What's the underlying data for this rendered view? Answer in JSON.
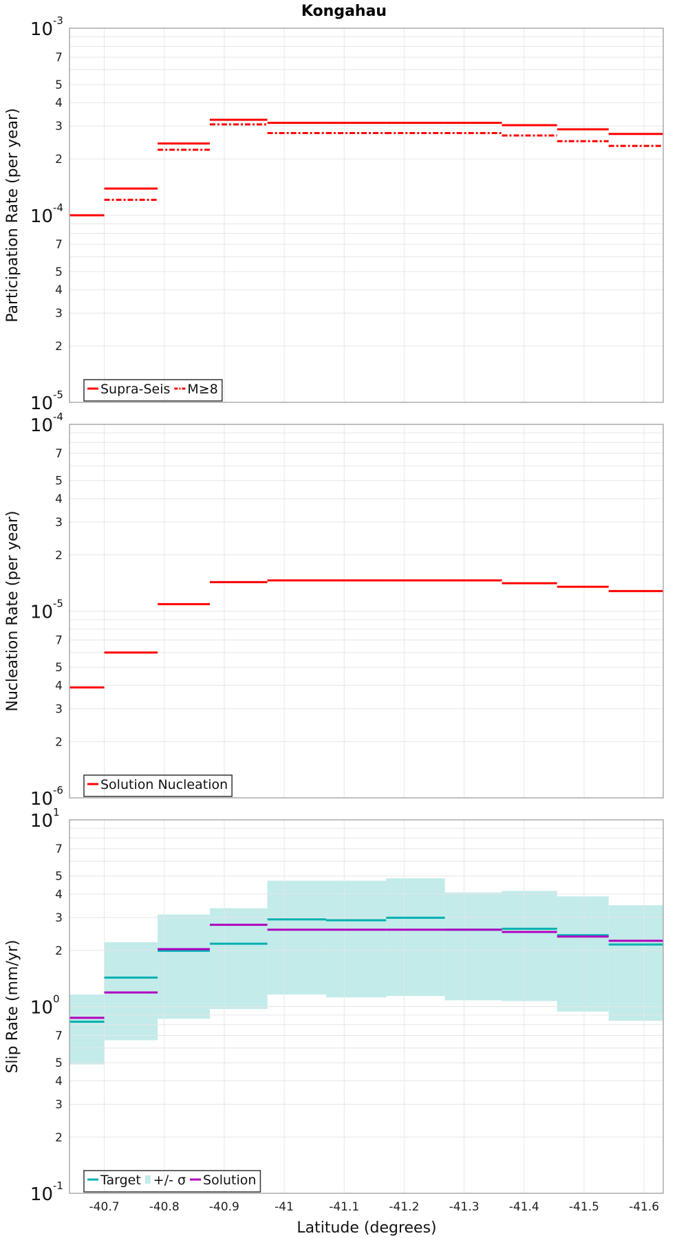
{
  "chart_data": {
    "type": "line",
    "title": "Kongahau",
    "xlabel": "Latitude (degrees)",
    "xlim": [
      -40.642,
      -41.632
    ],
    "xticks": [
      "-40.7",
      "-40.8",
      "-40.9",
      "-41",
      "-41.1",
      "-41.2",
      "-41.3",
      "-41.4",
      "-41.5",
      "-41.6"
    ],
    "xtick_values": [
      -40.7,
      -40.8,
      -40.9,
      -41.0,
      -41.1,
      -41.2,
      -41.3,
      -41.4,
      -41.5,
      -41.6
    ],
    "bin_edges": [
      -40.642,
      -40.7,
      -40.789,
      -40.876,
      -40.972,
      -41.07,
      -41.17,
      -41.268,
      -41.363,
      -41.455,
      -41.541,
      -41.632
    ],
    "grid": true,
    "panels": [
      {
        "ylabel": "Participation Rate (per year)",
        "yscale": "log",
        "ylim_exp": [
          -5,
          -3
        ],
        "legend": "bottom-left",
        "series": [
          {
            "name": "Supra-Seis",
            "style": "solid",
            "color": "#ff0000",
            "values": [
              0.0001,
              0.000139,
              0.000242,
              0.000324,
              0.000312,
              0.000312,
              0.000312,
              0.000312,
              0.000303,
              0.000288,
              0.000272
            ]
          },
          {
            "name": "M≥8",
            "style": "dashdot",
            "color": "#ff0000",
            "values": [
              null,
              0.000121,
              0.000224,
              0.000306,
              0.000275,
              0.000275,
              0.000275,
              0.000275,
              0.000267,
              0.000249,
              0.000235
            ]
          }
        ]
      },
      {
        "ylabel": "Nucleation Rate (per year)",
        "yscale": "log",
        "ylim_exp": [
          -6,
          -4
        ],
        "legend": "bottom-left",
        "series": [
          {
            "name": "Solution Nucleation",
            "style": "solid",
            "color": "#ff0000",
            "values": [
              3.9e-06,
              6e-06,
              1.09e-05,
              1.43e-05,
              1.46e-05,
              1.46e-05,
              1.46e-05,
              1.46e-05,
              1.41e-05,
              1.35e-05,
              1.28e-05
            ]
          }
        ]
      },
      {
        "ylabel": "Slip Rate (mm/yr)",
        "yscale": "log",
        "ylim_exp": [
          -1,
          1
        ],
        "legend": "bottom-left",
        "band": {
          "name": "+/- σ",
          "color": "#c2ebe9",
          "upper": [
            1.16,
            2.21,
            3.11,
            3.36,
            4.72,
            4.72,
            4.86,
            4.08,
            4.16,
            3.89,
            3.49
          ],
          "lower": [
            0.49,
            0.66,
            0.86,
            0.97,
            1.16,
            1.12,
            1.14,
            1.08,
            1.07,
            0.94,
            0.84
          ]
        },
        "series": [
          {
            "name": "Target",
            "style": "solid",
            "color": "#00b0b0",
            "values": [
              0.83,
              1.43,
              1.99,
              2.17,
              2.93,
              2.9,
              2.99,
              2.58,
              2.61,
              2.41,
              2.15
            ]
          },
          {
            "name": "Solution",
            "style": "solid",
            "color": "#b000c0",
            "values": [
              0.87,
              1.19,
              2.03,
              2.74,
              2.58,
              2.58,
              2.58,
              2.58,
              2.51,
              2.37,
              2.25
            ]
          }
        ],
        "legend_order": [
          "Target",
          "+/- σ",
          "Solution"
        ]
      }
    ],
    "minor_tick_labels": [
      "2",
      "3",
      "4",
      "5",
      "7"
    ],
    "decade_base": "10"
  }
}
